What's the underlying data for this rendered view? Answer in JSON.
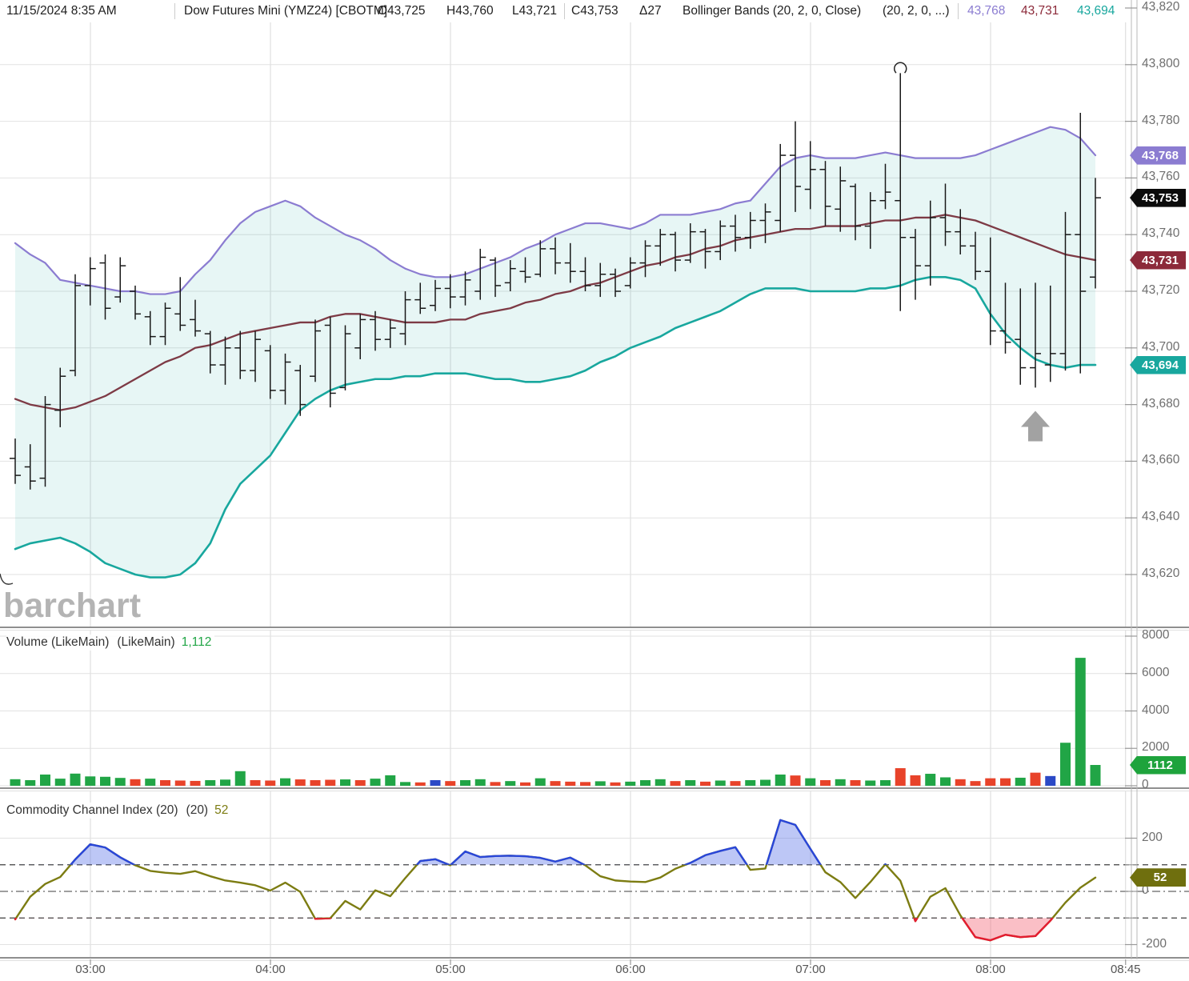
{
  "header": {
    "datetime": "11/15/2024 8:35 AM",
    "symbol": "Dow Futures Mini (YMZ24) [CBOTM]",
    "open": "O43,725",
    "high": "H43,760",
    "low": "L43,721",
    "close": "C43,753",
    "change": "Δ27",
    "study": "Bollinger Bands (20, 2, 0, Close)",
    "study_params": "(20, 2, 0, ...)",
    "bb_upper_value": "43,768",
    "bb_middle_value": "43,731",
    "bb_lower_value": "43,694"
  },
  "watermark": "barchart",
  "panels": {
    "volume": {
      "title": "Volume (LikeMain)",
      "title2": "(LikeMain)",
      "current": "1,112"
    },
    "cci": {
      "title": "Commodity Channel Index (20)",
      "title2": "(20)",
      "current": "52"
    }
  },
  "price_axis": {
    "ticks": [
      {
        "label": "43,820",
        "value": 43820
      },
      {
        "label": "43,800",
        "value": 43800
      },
      {
        "label": "43,780",
        "value": 43780
      },
      {
        "label": "43,760",
        "value": 43760
      },
      {
        "label": "43,740",
        "value": 43740
      },
      {
        "label": "43,720",
        "value": 43720
      },
      {
        "label": "43,700",
        "value": 43700
      },
      {
        "label": "43,680",
        "value": 43680
      },
      {
        "label": "43,660",
        "value": 43660
      },
      {
        "label": "43,640",
        "value": 43640
      },
      {
        "label": "43,620",
        "value": 43620
      }
    ]
  },
  "volume_axis": {
    "ticks": [
      {
        "label": "8000",
        "value": 8000
      },
      {
        "label": "6000",
        "value": 6000
      },
      {
        "label": "4000",
        "value": 4000
      },
      {
        "label": "2000",
        "value": 2000
      },
      {
        "label": "0",
        "value": 0
      }
    ]
  },
  "cci_axis": {
    "ticks": [
      {
        "label": "200",
        "value": 200
      },
      {
        "label": "0",
        "value": 0
      },
      {
        "label": "-200",
        "value": -200
      }
    ]
  },
  "x_axis": {
    "labels": [
      {
        "label": "03:00",
        "min": 0
      },
      {
        "label": "04:00",
        "min": 60
      },
      {
        "label": "05:00",
        "min": 120
      },
      {
        "label": "06:00",
        "min": 180
      },
      {
        "label": "07:00",
        "min": 240
      },
      {
        "label": "08:00",
        "min": 300
      },
      {
        "label": "08:45",
        "min": 345
      }
    ]
  },
  "badges": [
    {
      "panel": "price",
      "label": "43,768",
      "value": 43768,
      "color": "#8b7cd1"
    },
    {
      "panel": "price",
      "label": "43,753",
      "value": 43753,
      "color": "#0b0b0b"
    },
    {
      "panel": "price",
      "label": "43,731",
      "value": 43731,
      "color": "#8c2a3a"
    },
    {
      "panel": "price",
      "label": "43,694",
      "value": 43694,
      "color": "#18a79e"
    },
    {
      "panel": "volume",
      "label": "1112",
      "value": 1112,
      "color": "#1ea33c"
    },
    {
      "panel": "cci",
      "label": "52",
      "value": 52,
      "color": "#6f6f0e"
    }
  ],
  "colors": {
    "bb_upper": "#8b7cd1",
    "bb_middle": "#7d3a45",
    "bb_lower": "#18a79e",
    "band_fill": "rgba(24,167,158,0.10)",
    "ohlc_bar": "#191919",
    "vol_up": "#21a546",
    "vol_down": "#e8432a",
    "vol_neutral": "#2b49c6",
    "cci_line": "#7c7c12",
    "cci_above": "#2946d9",
    "cci_above_fill": "rgba(98,122,234,0.42)",
    "cci_below": "#e41b30",
    "cci_below_fill": "rgba(244,112,128,0.45)",
    "grid": "#e2e2e2",
    "vgrid": "#d8d8d8",
    "axis_line": "#b8b8b8",
    "tick": "#9a9a9a",
    "divider": "#8f8f8f",
    "arrow": "#a2a2a2",
    "dashed": "#3f3f3f"
  },
  "chart_data": [
    {
      "type": "ohlc",
      "name": "Dow Futures Mini (YMZ24) 5-minute",
      "start_time": "02:35",
      "interval_min": 5,
      "ylim": [
        43620,
        43820
      ],
      "ohlc": [
        [
          43661,
          43668,
          43652,
          43655
        ],
        [
          43658,
          43666,
          43650,
          43653
        ],
        [
          43654,
          43683,
          43651,
          43680
        ],
        [
          43678,
          43693,
          43672,
          43690
        ],
        [
          43692,
          43726,
          43690,
          43722
        ],
        [
          43722,
          43732,
          43715,
          43728
        ],
        [
          43730,
          43733,
          43710,
          43714
        ],
        [
          43718,
          43732,
          43716,
          43729
        ],
        [
          43720,
          43722,
          43710,
          43712
        ],
        [
          43711,
          43713,
          43701,
          43704
        ],
        [
          43704,
          43716,
          43701,
          43714
        ],
        [
          43712,
          43725,
          43706,
          43708
        ],
        [
          43710,
          43717,
          43704,
          43706
        ],
        [
          43705,
          43706,
          43691,
          43694
        ],
        [
          43694,
          43704,
          43687,
          43700
        ],
        [
          43700,
          43706,
          43689,
          43692
        ],
        [
          43692,
          43706,
          43688,
          43703
        ],
        [
          43699,
          43701,
          43682,
          43685
        ],
        [
          43685,
          43698,
          43680,
          43695
        ],
        [
          43692,
          43694,
          43676,
          43680
        ],
        [
          43690,
          43710,
          43688,
          43706
        ],
        [
          43708,
          43711,
          43679,
          43684
        ],
        [
          43686,
          43708,
          43685,
          43705
        ],
        [
          43700,
          43712,
          43696,
          43710
        ],
        [
          43710,
          43713,
          43699,
          43703
        ],
        [
          43703,
          43710,
          43700,
          43707
        ],
        [
          43705,
          43720,
          43701,
          43717
        ],
        [
          43717,
          43723,
          43712,
          43714
        ],
        [
          43715,
          43724,
          43713,
          43721
        ],
        [
          43721,
          43726,
          43714,
          43718
        ],
        [
          43718,
          43727,
          43715,
          43724
        ],
        [
          43720,
          43735,
          43717,
          43732
        ],
        [
          43731,
          43732,
          43718,
          43722
        ],
        [
          43723,
          43731,
          43720,
          43728
        ],
        [
          43727,
          43732,
          43723,
          43725
        ],
        [
          43726,
          43738,
          43725,
          43735
        ],
        [
          43735,
          43739,
          43726,
          43730
        ],
        [
          43730,
          43737,
          43723,
          43727
        ],
        [
          43727,
          43732,
          43720,
          43722
        ],
        [
          43722,
          43730,
          43718,
          43726
        ],
        [
          43726,
          43728,
          43718,
          43720
        ],
        [
          43722,
          43732,
          43721,
          43730
        ],
        [
          43730,
          43738,
          43725,
          43736
        ],
        [
          43736,
          43742,
          43729,
          43740
        ],
        [
          43740,
          43741,
          43727,
          43731
        ],
        [
          43731,
          43744,
          43730,
          43741
        ],
        [
          43741,
          43742,
          43728,
          43734
        ],
        [
          43734,
          43745,
          43731,
          43743
        ],
        [
          43743,
          43747,
          43734,
          43739
        ],
        [
          43739,
          43748,
          43735,
          43745
        ],
        [
          43745,
          43751,
          43737,
          43748
        ],
        [
          43745,
          43772,
          43741,
          43768
        ],
        [
          43768,
          43780,
          43748,
          43757
        ],
        [
          43756,
          43773,
          43749,
          43763
        ],
        [
          43763,
          43766,
          43743,
          43750
        ],
        [
          43749,
          43764,
          43741,
          43759
        ],
        [
          43757,
          43758,
          43738,
          43743
        ],
        [
          43743,
          43755,
          43735,
          43752
        ],
        [
          43752,
          43765,
          43749,
          43755
        ],
        [
          43752,
          43797,
          43713,
          43739
        ],
        [
          43739,
          43742,
          43717,
          43729
        ],
        [
          43729,
          43752,
          43722,
          43746
        ],
        [
          43746,
          43758,
          43736,
          43741
        ],
        [
          43741,
          43749,
          43733,
          43736
        ],
        [
          43736,
          43741,
          43724,
          43727
        ],
        [
          43727,
          43739,
          43701,
          43706
        ],
        [
          43706,
          43723,
          43698,
          43702
        ],
        [
          43703,
          43721,
          43687,
          43693
        ],
        [
          43693,
          43723,
          43686,
          43698
        ],
        [
          43694,
          43722,
          43688,
          43698
        ],
        [
          43698,
          43748,
          43692,
          43740
        ],
        [
          43740,
          43783,
          43691,
          43720
        ],
        [
          43725,
          43760,
          43721,
          43753
        ]
      ],
      "bollinger": {
        "upper": [
          43737,
          43733,
          43730,
          43724,
          43723,
          43722,
          43721,
          43720,
          43720,
          43719,
          43719,
          43720,
          43726,
          43731,
          43738,
          43744,
          43748,
          43750,
          43752,
          43750,
          43746,
          43743,
          43740,
          43738,
          43735,
          43731,
          43728,
          43726,
          43725,
          43725,
          43726,
          43728,
          43730,
          43732,
          43735,
          43737,
          43740,
          43742,
          43744,
          43744,
          43743,
          43742,
          43744,
          43747,
          43747,
          43747,
          43748,
          43749,
          43751,
          43752,
          43758,
          43764,
          43767,
          43768,
          43767,
          43767,
          43767,
          43768,
          43769,
          43768,
          43767,
          43767,
          43767,
          43767,
          43768,
          43770,
          43772,
          43774,
          43776,
          43778,
          43777,
          43774,
          43768
        ],
        "middle": [
          43682,
          43680,
          43679,
          43678,
          43679,
          43681,
          43683,
          43686,
          43689,
          43692,
          43695,
          43697,
          43700,
          43701,
          43703,
          43705,
          43706,
          43707,
          43708,
          43709,
          43709,
          43711,
          43712,
          43712,
          43711,
          43710,
          43709,
          43709,
          43709,
          43710,
          43710,
          43712,
          43713,
          43714,
          43716,
          43717,
          43719,
          43720,
          43722,
          43723,
          43725,
          43727,
          43729,
          43730,
          43732,
          43733,
          43735,
          43736,
          43738,
          43739,
          43740,
          43741,
          43742,
          43742,
          43743,
          43743,
          43743,
          43744,
          43745,
          43745,
          43746,
          43746,
          43747,
          43746,
          43745,
          43743,
          43741,
          43739,
          43737,
          43735,
          43733,
          43732,
          43731
        ],
        "lower": [
          43629,
          43631,
          43632,
          43633,
          43631,
          43628,
          43624,
          43622,
          43620,
          43619,
          43619,
          43620,
          43624,
          43631,
          43643,
          43652,
          43657,
          43662,
          43670,
          43678,
          43682,
          43685,
          43687,
          43688,
          43689,
          43689,
          43690,
          43690,
          43691,
          43691,
          43691,
          43690,
          43689,
          43689,
          43688,
          43688,
          43689,
          43690,
          43692,
          43695,
          43697,
          43700,
          43702,
          43704,
          43707,
          43709,
          43711,
          43713,
          43716,
          43719,
          43721,
          43721,
          43721,
          43720,
          43720,
          43720,
          43720,
          43721,
          43721,
          43722,
          43724,
          43725,
          43725,
          43724,
          43721,
          43712,
          43705,
          43700,
          43696,
          43694,
          43693,
          43694,
          43694
        ]
      },
      "annotations": [
        {
          "type": "up-arrow",
          "bar": 68,
          "price": 43682
        },
        {
          "type": "open-circle",
          "bar": 59,
          "price": 43800
        }
      ]
    },
    {
      "type": "bar",
      "name": "Volume",
      "ylim": [
        0,
        8000
      ],
      "values": [
        350,
        300,
        600,
        380,
        650,
        500,
        480,
        420,
        350,
        380,
        300,
        280,
        260,
        300,
        330,
        780,
        300,
        280,
        400,
        340,
        300,
        320,
        340,
        300,
        380,
        560,
        200,
        180,
        300,
        250,
        300,
        350,
        200,
        250,
        180,
        400,
        250,
        220,
        200,
        240,
        180,
        220,
        300,
        350,
        250,
        300,
        220,
        280,
        250,
        300,
        320,
        600,
        550,
        400,
        300,
        350,
        300,
        280,
        300,
        940,
        560,
        640,
        450,
        350,
        250,
        400,
        400,
        430,
        700,
        520,
        2300,
        6840,
        1112
      ],
      "colors": [
        "g",
        "g",
        "g",
        "g",
        "g",
        "g",
        "g",
        "g",
        "r",
        "g",
        "r",
        "r",
        "r",
        "g",
        "g",
        "g",
        "r",
        "r",
        "g",
        "r",
        "r",
        "r",
        "g",
        "r",
        "g",
        "g",
        "g",
        "r",
        "b",
        "r",
        "g",
        "g",
        "r",
        "g",
        "r",
        "g",
        "r",
        "r",
        "r",
        "g",
        "r",
        "g",
        "g",
        "g",
        "r",
        "g",
        "r",
        "g",
        "r",
        "g",
        "g",
        "g",
        "r",
        "g",
        "r",
        "g",
        "r",
        "g",
        "g",
        "r",
        "r",
        "g",
        "g",
        "r",
        "r",
        "r",
        "r",
        "g",
        "r",
        "b",
        "g",
        "g",
        "g"
      ]
    },
    {
      "type": "line",
      "name": "Commodity Channel Index (20)",
      "ylim": [
        -250,
        250
      ],
      "overbought": 100,
      "oversold": -100,
      "values": [
        -105,
        -20,
        28,
        54,
        120,
        177,
        165,
        128,
        98,
        77,
        70,
        66,
        76,
        57,
        41,
        33,
        23,
        3,
        33,
        -2,
        -103,
        -101,
        -36,
        -68,
        4,
        -18,
        50,
        114,
        121,
        98,
        150,
        129,
        133,
        134,
        132,
        126,
        112,
        127,
        98,
        57,
        41,
        37,
        35,
        52,
        85,
        107,
        136,
        152,
        166,
        81,
        86,
        268,
        250,
        160,
        72,
        35,
        -25,
        35,
        102,
        40,
        -112,
        -20,
        12,
        -90,
        -172,
        -184,
        -163,
        -172,
        -168,
        -110,
        -42,
        14,
        52
      ]
    }
  ]
}
